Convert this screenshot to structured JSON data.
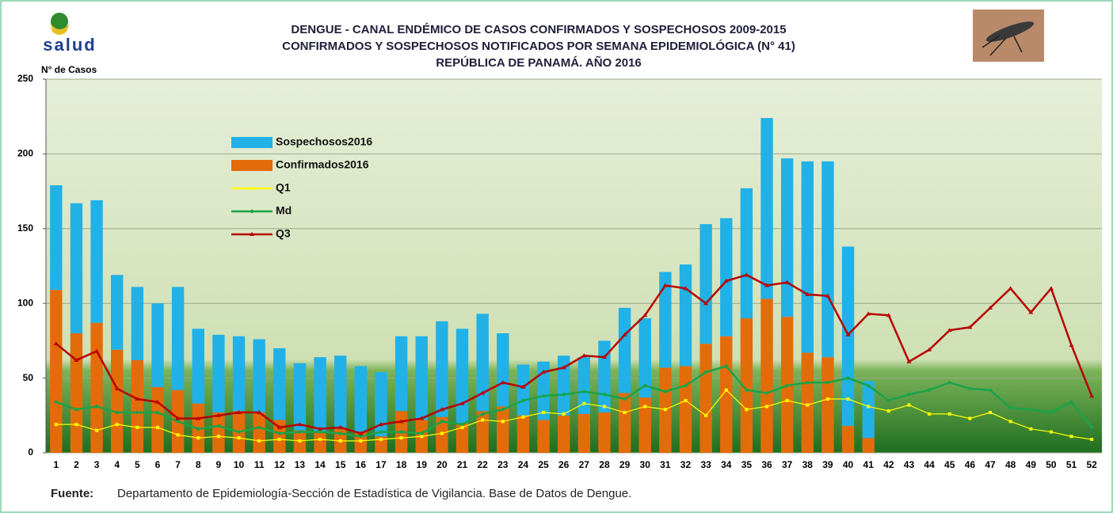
{
  "chart_data": {
    "type": "bar",
    "title_lines": [
      "DENGUE - CANAL ENDÉMICO DE CASOS CONFIRMADOS Y SOSPECHOSOS 2009-2015",
      "CONFIRMADOS Y SOSPECHOSOS NOTIFICADOS POR SEMANA EPIDEMIOLÓGICA (N° 41)",
      "REPÚBLICA DE PANAMÁ. AÑO 2016"
    ],
    "logo_text": "salud",
    "y_label": "N° de Casos",
    "categories": [
      "1",
      "2",
      "3",
      "4",
      "5",
      "6",
      "7",
      "8",
      "9",
      "10",
      "11",
      "12",
      "13",
      "14",
      "15",
      "16",
      "17",
      "18",
      "19",
      "20",
      "21",
      "22",
      "23",
      "24",
      "25",
      "26",
      "27",
      "28",
      "29",
      "30",
      "31",
      "32",
      "33",
      "34",
      "35",
      "36",
      "37",
      "38",
      "39",
      "40",
      "41",
      "42",
      "43",
      "44",
      "45",
      "46",
      "47",
      "48",
      "49",
      "50",
      "51",
      "52"
    ],
    "series": [
      {
        "name": "Confirmados2016",
        "type": "bar",
        "color": "#e36c0a",
        "values": [
          109,
          80,
          87,
          69,
          62,
          44,
          42,
          33,
          27,
          28,
          27,
          22,
          15,
          14,
          16,
          14,
          11,
          28,
          22,
          24,
          20,
          28,
          31,
          25,
          22,
          25,
          26,
          27,
          40,
          37,
          57,
          58,
          73,
          78,
          90,
          103,
          91,
          67,
          64,
          18,
          10,
          null,
          null,
          null,
          null,
          null,
          null,
          null,
          null,
          null,
          null,
          null
        ]
      },
      {
        "name": "Sospechosos2016",
        "type": "bar",
        "color": "#21b1e6",
        "values": [
          70,
          87,
          82,
          50,
          49,
          56,
          69,
          50,
          52,
          50,
          49,
          48,
          45,
          50,
          49,
          44,
          43,
          50,
          56,
          64,
          63,
          65,
          49,
          34,
          39,
          40,
          38,
          48,
          57,
          53,
          64,
          68,
          80,
          79,
          87,
          121,
          106,
          128,
          131,
          120,
          38,
          null,
          null,
          null,
          null,
          null,
          null,
          null,
          null,
          null,
          null,
          null
        ]
      },
      {
        "name": "Q1",
        "type": "line",
        "marker": "square",
        "color": "#ffff00",
        "values": [
          19,
          19,
          15,
          19,
          17,
          17,
          12,
          10,
          11,
          10,
          8,
          9,
          8,
          9,
          8,
          8,
          9,
          10,
          11,
          13,
          17,
          22,
          21,
          24,
          27,
          26,
          33,
          31,
          27,
          31,
          29,
          35,
          25,
          42,
          29,
          31,
          35,
          32,
          36,
          36,
          31,
          28,
          32,
          26,
          26,
          23,
          27,
          21,
          16,
          14,
          11,
          9
        ]
      },
      {
        "name": "Md",
        "type": "line",
        "marker": "circle",
        "color": "#1aa34a",
        "values": [
          34,
          29,
          31,
          27,
          27,
          27,
          21,
          16,
          18,
          14,
          17,
          13,
          14,
          14,
          13,
          11,
          14,
          14,
          13,
          21,
          19,
          26,
          29,
          35,
          38,
          39,
          41,
          39,
          36,
          45,
          41,
          45,
          54,
          58,
          42,
          40,
          45,
          47,
          47,
          50,
          45,
          35,
          39,
          42,
          47,
          43,
          42,
          30,
          29,
          27,
          34,
          17
        ]
      },
      {
        "name": "Q3",
        "type": "line",
        "marker": "triangle",
        "color": "#b80000",
        "values": [
          73,
          62,
          68,
          43,
          36,
          34,
          23,
          23,
          25,
          27,
          27,
          17,
          19,
          16,
          17,
          13,
          19,
          21,
          23,
          29,
          33,
          40,
          47,
          44,
          54,
          57,
          65,
          64,
          79,
          92,
          112,
          110,
          100,
          115,
          119,
          112,
          114,
          106,
          105,
          79,
          93,
          92,
          61,
          69,
          82,
          84,
          97,
          110,
          94,
          110,
          72,
          38
        ]
      }
    ],
    "ylim": [
      0,
      250
    ],
    "yticks": [
      0,
      50,
      100,
      150,
      200,
      250
    ],
    "grid": true,
    "source_label": "Fuente:",
    "source_text": "Departamento de Epidemiología-Sección de Estadística de Vigilancia. Base de Datos de Dengue."
  }
}
